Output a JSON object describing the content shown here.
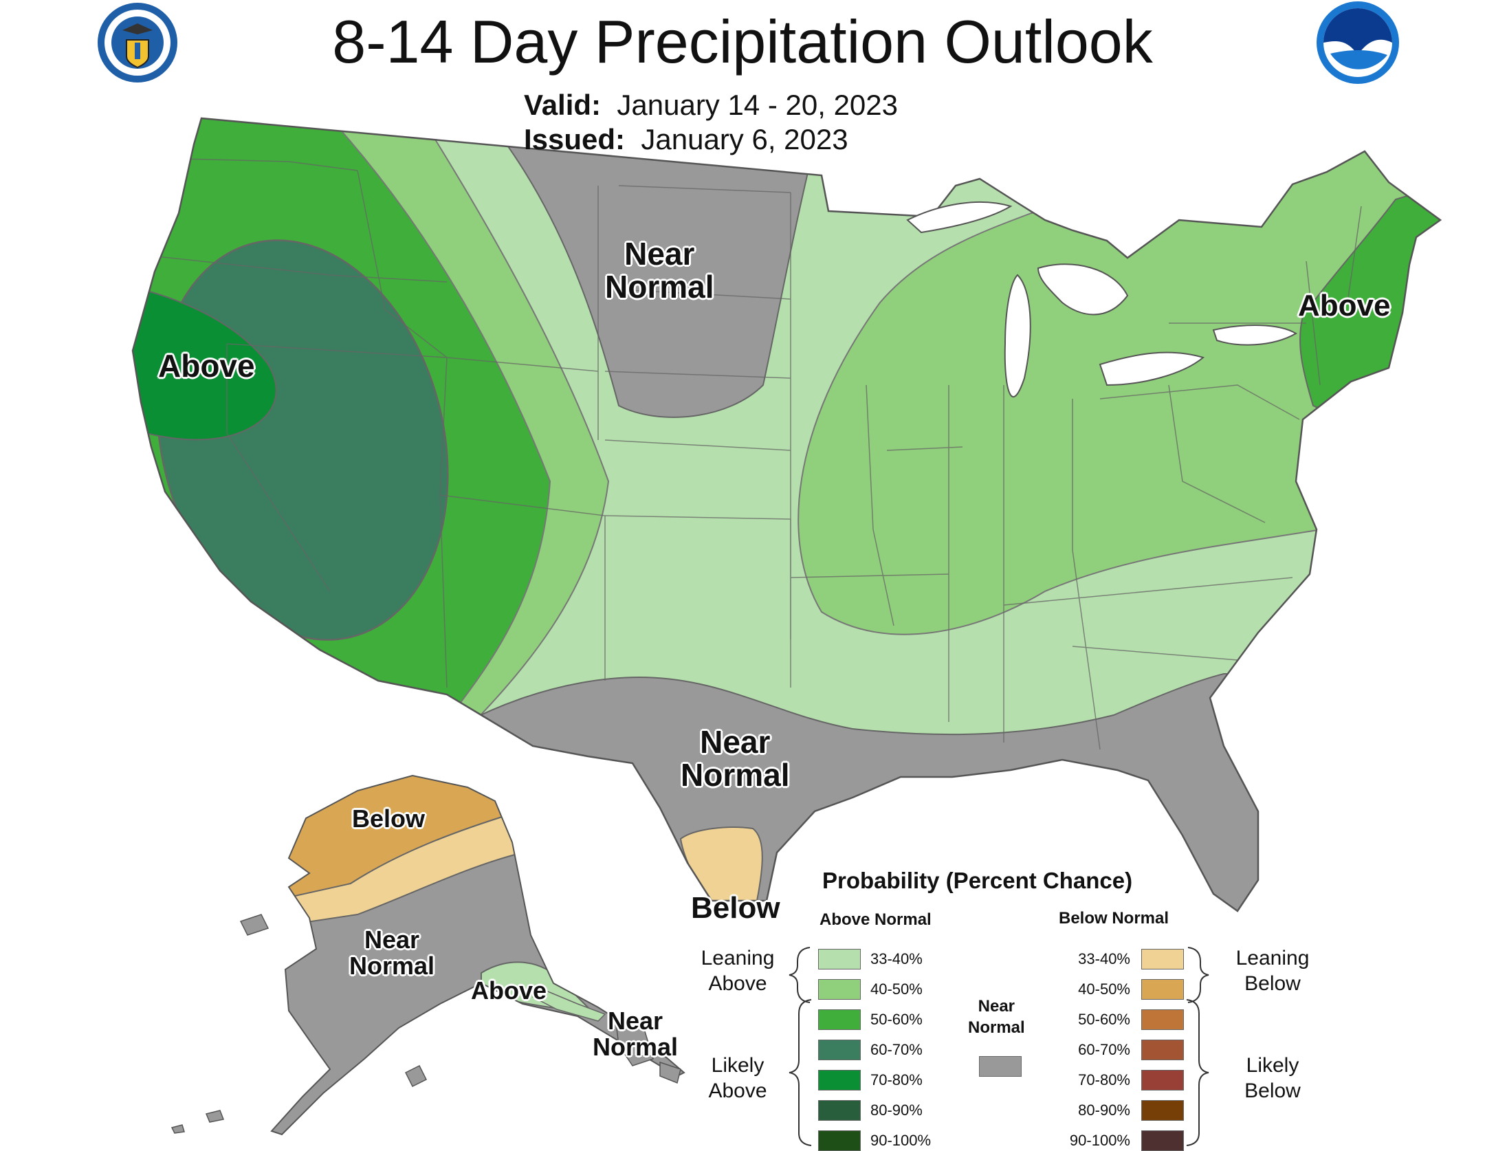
{
  "header": {
    "title": "8-14 Day Precipitation Outlook",
    "valid_label": "Valid:",
    "valid_value": "January 14 - 20, 2023",
    "issued_label": "Issued:",
    "issued_value": "January 6, 2023"
  },
  "logos": {
    "left": "doc-seal-icon",
    "right": "noaa-logo-icon"
  },
  "map_labels": {
    "west_above": "Above",
    "north_near_1": "Near",
    "north_near_2": "Normal",
    "northeast_above": "Above",
    "south_near_1": "Near",
    "south_near_2": "Normal",
    "texas_below": "Below",
    "alaska_below": "Below",
    "alaska_near_1": "Near",
    "alaska_near_2": "Normal",
    "alaska_above": "Above",
    "panhandle_near_1": "Near",
    "panhandle_near_2": "Normal"
  },
  "legend": {
    "title": "Probability (Percent Chance)",
    "above_header": "Above Normal",
    "below_header": "Below Normal",
    "near_header_1": "Near",
    "near_header_2": "Normal",
    "near_color": "#999999",
    "leaning_above_1": "Leaning",
    "leaning_above_2": "Above",
    "likely_above_1": "Likely",
    "likely_above_2": "Above",
    "leaning_below_1": "Leaning",
    "leaning_below_2": "Below",
    "likely_below_1": "Likely",
    "likely_below_2": "Below",
    "above": [
      {
        "range": "33-40%",
        "color": "#b5dfac"
      },
      {
        "range": "40-50%",
        "color": "#90cf7b"
      },
      {
        "range": "50-60%",
        "color": "#3fae3a"
      },
      {
        "range": "60-70%",
        "color": "#3b7d5f"
      },
      {
        "range": "70-80%",
        "color": "#0a8f35"
      },
      {
        "range": "80-90%",
        "color": "#285e3b"
      },
      {
        "range": "90-100%",
        "color": "#1e4f16"
      }
    ],
    "below": [
      {
        "range": "33-40%",
        "color": "#f0d394"
      },
      {
        "range": "40-50%",
        "color": "#d9a653"
      },
      {
        "range": "50-60%",
        "color": "#c07538"
      },
      {
        "range": "60-70%",
        "color": "#a25433"
      },
      {
        "range": "70-80%",
        "color": "#984035"
      },
      {
        "range": "80-90%",
        "color": "#773f08"
      },
      {
        "range": "90-100%",
        "color": "#4e3030"
      }
    ]
  }
}
